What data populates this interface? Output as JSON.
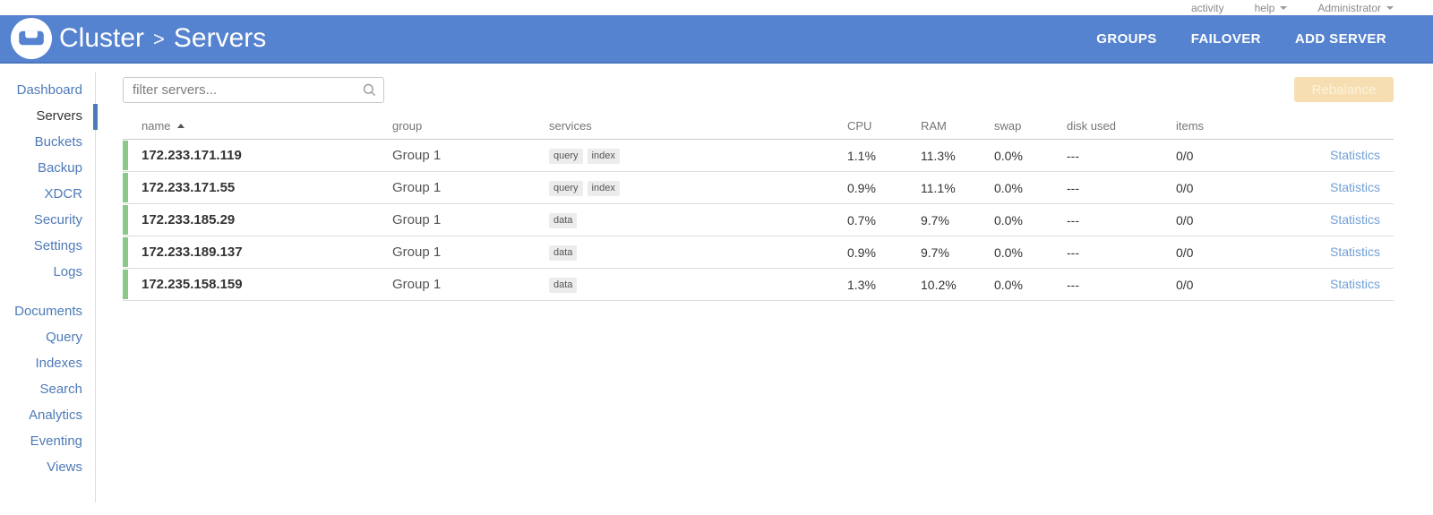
{
  "topbar": {
    "activity_label": "activity",
    "help_label": "help",
    "user_label": "Administrator"
  },
  "header": {
    "breadcrumb": {
      "cluster": "Cluster",
      "separator": ">",
      "page": "Servers"
    },
    "actions": [
      {
        "label": "GROUPS"
      },
      {
        "label": "FAILOVER"
      },
      {
        "label": "ADD SERVER"
      }
    ]
  },
  "sidebar": {
    "group1": [
      {
        "label": "Dashboard",
        "active": false
      },
      {
        "label": "Servers",
        "active": true
      },
      {
        "label": "Buckets",
        "active": false
      },
      {
        "label": "Backup",
        "active": false
      },
      {
        "label": "XDCR",
        "active": false
      },
      {
        "label": "Security",
        "active": false
      },
      {
        "label": "Settings",
        "active": false
      },
      {
        "label": "Logs",
        "active": false
      }
    ],
    "group2": [
      {
        "label": "Documents",
        "active": false
      },
      {
        "label": "Query",
        "active": false
      },
      {
        "label": "Indexes",
        "active": false
      },
      {
        "label": "Search",
        "active": false
      },
      {
        "label": "Analytics",
        "active": false
      },
      {
        "label": "Eventing",
        "active": false
      },
      {
        "label": "Views",
        "active": false
      }
    ]
  },
  "toolbar": {
    "filter_placeholder": "filter servers...",
    "rebalance_label": "Rebalance",
    "rebalance_enabled": false
  },
  "table": {
    "columns": {
      "name": "name",
      "group": "group",
      "services": "services",
      "cpu": "CPU",
      "ram": "RAM",
      "swap": "swap",
      "disk": "disk used",
      "items": "items"
    },
    "sort": {
      "column": "name",
      "direction": "asc"
    },
    "rows": [
      {
        "name": "172.233.171.119",
        "group": "Group 1",
        "services": [
          "query",
          "index"
        ],
        "cpu": "1.1%",
        "ram": "11.3%",
        "swap": "0.0%",
        "disk": "---",
        "items": "0/0",
        "link": "Statistics",
        "health": "healthy"
      },
      {
        "name": "172.233.171.55",
        "group": "Group 1",
        "services": [
          "query",
          "index"
        ],
        "cpu": "0.9%",
        "ram": "11.1%",
        "swap": "0.0%",
        "disk": "---",
        "items": "0/0",
        "link": "Statistics",
        "health": "healthy"
      },
      {
        "name": "172.233.185.29",
        "group": "Group 1",
        "services": [
          "data"
        ],
        "cpu": "0.7%",
        "ram": "9.7%",
        "swap": "0.0%",
        "disk": "---",
        "items": "0/0",
        "link": "Statistics",
        "health": "healthy"
      },
      {
        "name": "172.233.189.137",
        "group": "Group 1",
        "services": [
          "data"
        ],
        "cpu": "0.9%",
        "ram": "9.7%",
        "swap": "0.0%",
        "disk": "---",
        "items": "0/0",
        "link": "Statistics",
        "health": "healthy"
      },
      {
        "name": "172.235.158.159",
        "group": "Group 1",
        "services": [
          "data"
        ],
        "cpu": "1.3%",
        "ram": "10.2%",
        "swap": "0.0%",
        "disk": "---",
        "items": "0/0",
        "link": "Statistics",
        "health": "healthy"
      }
    ]
  },
  "colors": {
    "header_blue": "#5683cf",
    "health_green": "#8dc88b",
    "rebalance_disabled_bg": "#f6deb2",
    "sidebar_link_blue": "#4e7ab8",
    "stats_link_blue": "#72a0d6"
  }
}
